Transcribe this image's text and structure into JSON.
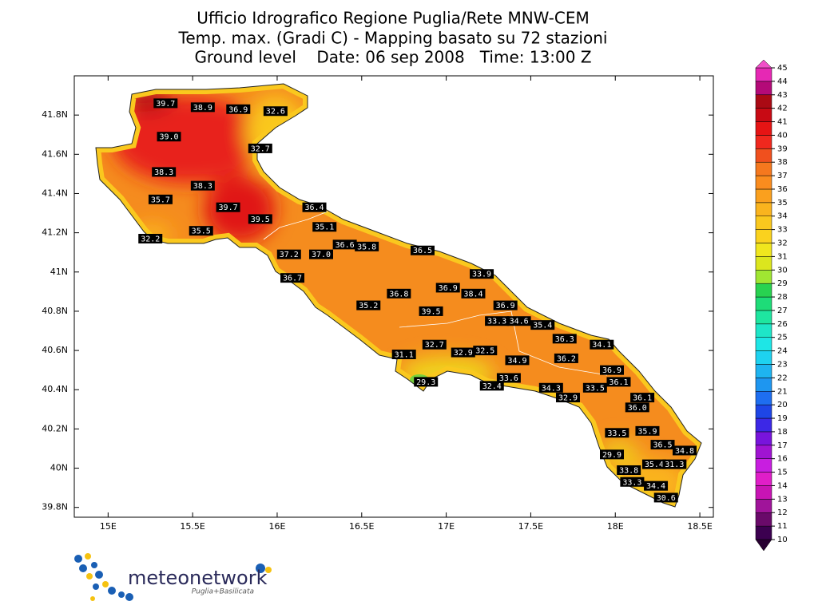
{
  "title": [
    "Ufficio Idrografico Regione Puglia/Rete MNW-CEM",
    "Temp. max. (Gradi C) - Mapping basato su 72 stazioni",
    "Ground level    Date: 06 sep 2008   Time: 13:00 Z"
  ],
  "map": {
    "xlim": [
      14.8,
      18.58
    ],
    "ylim": [
      39.75,
      42.0
    ],
    "xticks": [
      {
        "value": 15,
        "label": "15E"
      },
      {
        "value": 15.5,
        "label": "15.5E"
      },
      {
        "value": 16,
        "label": "16E"
      },
      {
        "value": 16.5,
        "label": "16.5E"
      },
      {
        "value": 17,
        "label": "17E"
      },
      {
        "value": 17.5,
        "label": "17.5E"
      },
      {
        "value": 18,
        "label": "18E"
      },
      {
        "value": 18.5,
        "label": "18.5E"
      }
    ],
    "yticks": [
      {
        "value": 39.8,
        "label": "39.8N"
      },
      {
        "value": 40,
        "label": "40N"
      },
      {
        "value": 40.2,
        "label": "40.2N"
      },
      {
        "value": 40.4,
        "label": "40.4N"
      },
      {
        "value": 40.6,
        "label": "40.6N"
      },
      {
        "value": 40.8,
        "label": "40.8N"
      },
      {
        "value": 41,
        "label": "41N"
      },
      {
        "value": 41.2,
        "label": "41.2N"
      },
      {
        "value": 41.4,
        "label": "41.4N"
      },
      {
        "value": 41.6,
        "label": "41.6N"
      },
      {
        "value": 41.8,
        "label": "41.8N"
      }
    ],
    "stations": [
      {
        "lon": 15.34,
        "lat": 41.86,
        "label": "39.7"
      },
      {
        "lon": 15.56,
        "lat": 41.84,
        "label": "38.9"
      },
      {
        "lon": 15.77,
        "lat": 41.83,
        "label": "36.9"
      },
      {
        "lon": 15.99,
        "lat": 41.82,
        "label": "32.6"
      },
      {
        "lon": 15.36,
        "lat": 41.69,
        "label": "39.0"
      },
      {
        "lon": 15.9,
        "lat": 41.63,
        "label": "32.7"
      },
      {
        "lon": 15.33,
        "lat": 41.51,
        "label": "38.3"
      },
      {
        "lon": 15.56,
        "lat": 41.44,
        "label": "38.3"
      },
      {
        "lon": 15.31,
        "lat": 41.37,
        "label": "35.7"
      },
      {
        "lon": 15.71,
        "lat": 41.33,
        "label": "39.7"
      },
      {
        "lon": 15.9,
        "lat": 41.27,
        "label": "39.5"
      },
      {
        "lon": 16.22,
        "lat": 41.33,
        "label": "36.4"
      },
      {
        "lon": 15.55,
        "lat": 41.21,
        "label": "35.5"
      },
      {
        "lon": 15.25,
        "lat": 41.17,
        "label": "32.2"
      },
      {
        "lon": 16.28,
        "lat": 41.23,
        "label": "35.1"
      },
      {
        "lon": 16.4,
        "lat": 41.14,
        "label": "36.6"
      },
      {
        "lon": 16.53,
        "lat": 41.13,
        "label": "35.8"
      },
      {
        "lon": 16.86,
        "lat": 41.11,
        "label": "36.5"
      },
      {
        "lon": 16.07,
        "lat": 41.09,
        "label": "37.2"
      },
      {
        "lon": 16.26,
        "lat": 41.09,
        "label": "37.0"
      },
      {
        "lon": 16.09,
        "lat": 40.97,
        "label": "36.7"
      },
      {
        "lon": 17.21,
        "lat": 40.99,
        "label": "33.9"
      },
      {
        "lon": 17.01,
        "lat": 40.92,
        "label": "36.9"
      },
      {
        "lon": 17.16,
        "lat": 40.89,
        "label": "38.4"
      },
      {
        "lon": 16.72,
        "lat": 40.89,
        "label": "36.8"
      },
      {
        "lon": 16.54,
        "lat": 40.83,
        "label": "35.2"
      },
      {
        "lon": 17.35,
        "lat": 40.83,
        "label": "36.9"
      },
      {
        "lon": 16.91,
        "lat": 40.8,
        "label": "39.5"
      },
      {
        "lon": 17.3,
        "lat": 40.75,
        "label": "33.3"
      },
      {
        "lon": 17.43,
        "lat": 40.75,
        "label": "34.6"
      },
      {
        "lon": 17.57,
        "lat": 40.73,
        "label": "35.4"
      },
      {
        "lon": 17.7,
        "lat": 40.66,
        "label": "36.3"
      },
      {
        "lon": 17.92,
        "lat": 40.63,
        "label": "34.1"
      },
      {
        "lon": 16.93,
        "lat": 40.63,
        "label": "32.7"
      },
      {
        "lon": 16.75,
        "lat": 40.58,
        "label": "31.1"
      },
      {
        "lon": 17.1,
        "lat": 40.59,
        "label": "32.9"
      },
      {
        "lon": 17.23,
        "lat": 40.6,
        "label": "32.5"
      },
      {
        "lon": 17.42,
        "lat": 40.55,
        "label": "34.9"
      },
      {
        "lon": 17.71,
        "lat": 40.56,
        "label": "36.2"
      },
      {
        "lon": 17.98,
        "lat": 40.5,
        "label": "36.9"
      },
      {
        "lon": 18.02,
        "lat": 40.44,
        "label": "36.1"
      },
      {
        "lon": 16.88,
        "lat": 40.44,
        "label": "29.3"
      },
      {
        "lon": 17.37,
        "lat": 40.46,
        "label": "33.6"
      },
      {
        "lon": 17.27,
        "lat": 40.42,
        "label": "32.4"
      },
      {
        "lon": 17.62,
        "lat": 40.41,
        "label": "34.3"
      },
      {
        "lon": 17.72,
        "lat": 40.36,
        "label": "32.9"
      },
      {
        "lon": 17.88,
        "lat": 40.41,
        "label": "33.5"
      },
      {
        "lon": 18.16,
        "lat": 40.36,
        "label": "36.1"
      },
      {
        "lon": 18.13,
        "lat": 40.31,
        "label": "36.0"
      },
      {
        "lon": 18.01,
        "lat": 40.18,
        "label": "33.5"
      },
      {
        "lon": 18.19,
        "lat": 40.19,
        "label": "35.9"
      },
      {
        "lon": 18.28,
        "lat": 40.12,
        "label": "36.5"
      },
      {
        "lon": 18.41,
        "lat": 40.09,
        "label": "34.8"
      },
      {
        "lon": 17.98,
        "lat": 40.07,
        "label": "29.9"
      },
      {
        "lon": 18.23,
        "lat": 40.02,
        "label": "35.4"
      },
      {
        "lon": 18.35,
        "lat": 40.02,
        "label": "31.3"
      },
      {
        "lon": 18.08,
        "lat": 39.99,
        "label": "33.8"
      },
      {
        "lon": 18.1,
        "lat": 39.93,
        "label": "33.3"
      },
      {
        "lon": 18.24,
        "lat": 39.91,
        "label": "34.4"
      },
      {
        "lon": 18.3,
        "lat": 39.85,
        "label": "30.6"
      }
    ]
  },
  "colorbar": {
    "levels": [
      10,
      11,
      12,
      13,
      14,
      15,
      16,
      17,
      18,
      19,
      20,
      21,
      22,
      23,
      24,
      25,
      26,
      27,
      28,
      29,
      30,
      31,
      32,
      33,
      34,
      35,
      36,
      37,
      38,
      39,
      40,
      41,
      42,
      43,
      44,
      45
    ],
    "colors": [
      "#3c0050",
      "#6a0a6a",
      "#a0149a",
      "#c814b4",
      "#e01ec8",
      "#c81ee0",
      "#a014d2",
      "#7814dc",
      "#3c28e6",
      "#1e46e6",
      "#1e6ef0",
      "#1e96f0",
      "#1eb4f0",
      "#1ed2f0",
      "#1ee6e6",
      "#1ee6c8",
      "#1ee6a0",
      "#1edc78",
      "#28d250",
      "#a0e632",
      "#dce61e",
      "#f0e61e",
      "#fad21e",
      "#fac81e",
      "#fab41e",
      "#faa01e",
      "#fa8c1e",
      "#f5781e",
      "#f0501e",
      "#f0281e",
      "#e61414",
      "#c80a14",
      "#aa0a14",
      "#b40a78",
      "#e628b4"
    ],
    "under_color": "#280032",
    "over_color": "#f050c8"
  },
  "logo": {
    "name": "meteonetwork",
    "region": "Puglia+Basilicata"
  }
}
